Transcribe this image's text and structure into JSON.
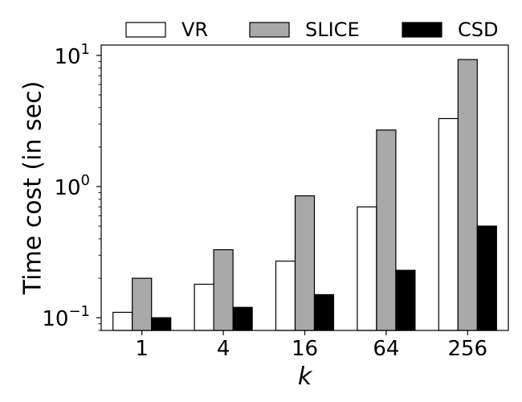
{
  "chart_data": {
    "type": "bar",
    "categories": [
      "1",
      "4",
      "16",
      "64",
      "256"
    ],
    "series": [
      {
        "name": "VR",
        "values": [
          0.11,
          0.18,
          0.27,
          0.7,
          3.3
        ],
        "color": "#ffffff"
      },
      {
        "name": "SLICE",
        "values": [
          0.2,
          0.33,
          0.85,
          2.7,
          9.3
        ],
        "color": "#a9a9a9"
      },
      {
        "name": "CSD",
        "values": [
          0.1,
          0.12,
          0.15,
          0.23,
          0.5
        ],
        "color": "#000000"
      }
    ],
    "xlabel": "k",
    "ylabel": "Time cost (in sec)",
    "yscale": "log",
    "ylim": [
      0.08,
      12
    ],
    "yticks": [
      {
        "value": 0.1,
        "base": "10",
        "exp": "−1"
      },
      {
        "value": 1,
        "base": "10",
        "exp": "0"
      },
      {
        "value": 10,
        "base": "10",
        "exp": "1"
      }
    ],
    "legend": {
      "placement": "top",
      "columns": 3
    },
    "grid": false
  }
}
